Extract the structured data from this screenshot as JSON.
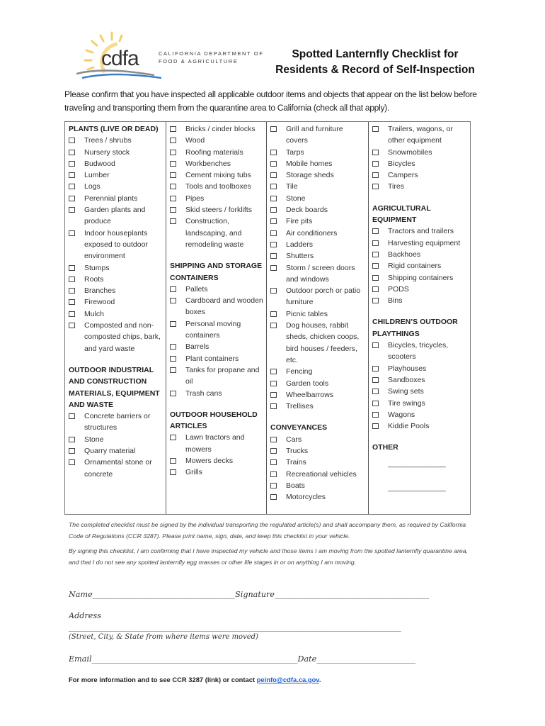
{
  "logo": {
    "wordmark": "cdfa",
    "line1": "CALIFORNIA DEPARTMENT OF",
    "line2": "FOOD & AGRICULTURE",
    "colors": {
      "sun": "#f2cf6a",
      "wave_blue": "#3d7fc7",
      "wave_gray": "#8a8a8a"
    }
  },
  "title": {
    "line1": "Spotted Lanternfly Checklist for",
    "line2": "Residents & Record of Self-Inspection"
  },
  "intro": "Please confirm that you have inspected all applicable outdoor items and objects that appear on the list below before traveling and transporting them from the quarantine area to California (check all that apply).",
  "columns": [
    [
      {
        "type": "heading",
        "text": "PLANTS (LIVE OR DEAD)"
      },
      {
        "type": "item",
        "text": "Trees / shrubs"
      },
      {
        "type": "item",
        "text": "Nursery stock"
      },
      {
        "type": "item",
        "text": "Budwood"
      },
      {
        "type": "item",
        "text": "Lumber"
      },
      {
        "type": "item",
        "text": "Logs"
      },
      {
        "type": "item",
        "text": "Perennial plants"
      },
      {
        "type": "item",
        "text": "Garden plants and produce"
      },
      {
        "type": "item",
        "text": "Indoor houseplants exposed to outdoor environment"
      },
      {
        "type": "item",
        "text": "Stumps"
      },
      {
        "type": "item",
        "text": "Roots"
      },
      {
        "type": "item",
        "text": "Branches"
      },
      {
        "type": "item",
        "text": "Firewood"
      },
      {
        "type": "item",
        "text": "Mulch"
      },
      {
        "type": "item",
        "text": "Composted and non-composted chips, bark, and yard waste"
      },
      {
        "type": "blank"
      },
      {
        "type": "heading",
        "text": "OUTDOOR INDUSTRIAL AND CONSTRUCTION MATERIALS, EQUIPMENT AND WASTE"
      },
      {
        "type": "item",
        "text": "Concrete barriers or structures"
      },
      {
        "type": "item",
        "text": "Stone"
      },
      {
        "type": "item",
        "text": "Quarry material"
      },
      {
        "type": "item",
        "text": "Ornamental stone or concrete"
      }
    ],
    [
      {
        "type": "item",
        "text": "Bricks / cinder blocks"
      },
      {
        "type": "item",
        "text": "Wood"
      },
      {
        "type": "item",
        "text": "Roofing materials"
      },
      {
        "type": "item",
        "text": "Workbenches"
      },
      {
        "type": "item",
        "text": "Cement mixing tubs"
      },
      {
        "type": "item",
        "text": "Tools and toolboxes"
      },
      {
        "type": "item",
        "text": "Pipes"
      },
      {
        "type": "item",
        "text": "Skid steers / forklifts"
      },
      {
        "type": "item",
        "text": "Construction, landscaping, and remodeling waste"
      },
      {
        "type": "blank"
      },
      {
        "type": "heading",
        "text": "SHIPPING AND STORAGE CONTAINERS"
      },
      {
        "type": "item",
        "text": "Pallets"
      },
      {
        "type": "item",
        "text": "Cardboard and wooden boxes"
      },
      {
        "type": "item",
        "text": "Personal moving containers"
      },
      {
        "type": "item",
        "text": "Barrels"
      },
      {
        "type": "item",
        "text": "Plant containers"
      },
      {
        "type": "item",
        "text": "Tanks for propane and oil"
      },
      {
        "type": "item",
        "text": "Trash cans"
      },
      {
        "type": "blank"
      },
      {
        "type": "heading",
        "text": "OUTDOOR HOUSEHOLD ARTICLES"
      },
      {
        "type": "item",
        "text": "Lawn tractors and mowers"
      },
      {
        "type": "item",
        "text": "Mowers decks"
      },
      {
        "type": "item",
        "text": "Grills"
      }
    ],
    [
      {
        "type": "item",
        "text": "Grill and furniture covers"
      },
      {
        "type": "item",
        "text": "Tarps"
      },
      {
        "type": "item",
        "text": "Mobile homes"
      },
      {
        "type": "item",
        "text": "Storage sheds"
      },
      {
        "type": "item",
        "text": "Tile"
      },
      {
        "type": "item",
        "text": "Stone"
      },
      {
        "type": "item",
        "text": "Deck boards"
      },
      {
        "type": "item",
        "text": "Fire pits"
      },
      {
        "type": "item",
        "text": "Air conditioners"
      },
      {
        "type": "item",
        "text": "Ladders"
      },
      {
        "type": "item",
        "text": "Shutters"
      },
      {
        "type": "item",
        "text": "Storm / screen doors and windows"
      },
      {
        "type": "item",
        "text": "Outdoor porch or patio furniture"
      },
      {
        "type": "item",
        "text": "Picnic tables"
      },
      {
        "type": "item",
        "text": "Dog houses, rabbit sheds, chicken coops, bird houses / feeders, etc."
      },
      {
        "type": "item",
        "text": "Fencing"
      },
      {
        "type": "item",
        "text": "Garden tools"
      },
      {
        "type": "item",
        "text": "Wheelbarrows"
      },
      {
        "type": "item",
        "text": "Trellises"
      },
      {
        "type": "blank"
      },
      {
        "type": "heading",
        "text": "CONVEYANCES"
      },
      {
        "type": "item",
        "text": "Cars"
      },
      {
        "type": "item",
        "text": "Trucks"
      },
      {
        "type": "item",
        "text": "Trains"
      },
      {
        "type": "item",
        "text": "Recreational vehicles"
      },
      {
        "type": "item",
        "text": "Boats"
      },
      {
        "type": "item",
        "text": "Motorcycles"
      }
    ],
    [
      {
        "type": "item",
        "text": "Trailers, wagons, or other equipment"
      },
      {
        "type": "item",
        "text": "Snowmobiles"
      },
      {
        "type": "item",
        "text": "Bicycles"
      },
      {
        "type": "item",
        "text": "Campers"
      },
      {
        "type": "item",
        "text": "Tires"
      },
      {
        "type": "blank"
      },
      {
        "type": "heading",
        "text": "AGRICULTURAL EQUIPMENT"
      },
      {
        "type": "item",
        "text": "Tractors and trailers"
      },
      {
        "type": "item",
        "text": "Harvesting equipment"
      },
      {
        "type": "item",
        "text": "Backhoes"
      },
      {
        "type": "item",
        "text": "Rigid containers"
      },
      {
        "type": "item",
        "text": "Shipping containers"
      },
      {
        "type": "item",
        "text": "PODS"
      },
      {
        "type": "item",
        "text": "Bins"
      },
      {
        "type": "blank"
      },
      {
        "type": "heading",
        "text": "CHILDREN’S OUTDOOR PLAYTHINGS"
      },
      {
        "type": "item",
        "text": "Bicycles, tricycles, scooters"
      },
      {
        "type": "item",
        "text": "Playhouses"
      },
      {
        "type": "item",
        "text": "Sandboxes"
      },
      {
        "type": "item",
        "text": "Swing sets"
      },
      {
        "type": "item",
        "text": "Tire swings"
      },
      {
        "type": "item",
        "text": "Wagons"
      },
      {
        "type": "item",
        "text": "Kiddie Pools"
      },
      {
        "type": "blank"
      },
      {
        "type": "heading",
        "text": "OTHER"
      },
      {
        "type": "fill",
        "text": "______________"
      },
      {
        "type": "fill",
        "text": "______________"
      }
    ]
  ],
  "notice1": "The completed checklist must be signed by the individual transporting the regulated article(s) and shall accompany them, as required by California Code of Regulations (CCR 3287). Please print name, sign, date, and keep this checklist in your vehicle.",
  "notice2": "By signing this checklist, I am confirming that I have inspected my vehicle and those items I am moving from the spotted lanternfly quarantine area, and that I do not see any spotted lanternfly egg masses or other life stages in or on anything I am moving.",
  "signature": {
    "name_label": "Name",
    "name_line": "____________________________________",
    "signature_label": "Signature",
    "signature_line": "_______________________________________",
    "address_label": "Address",
    "address_line": "____________________________________________________________________________________",
    "address_hint": "(Street, City, & State from where items were moved)",
    "email_label": "Email",
    "email_line": "____________________________________________________",
    "date_label": "Date",
    "date_line": "_________________________"
  },
  "footer": {
    "text": "For more information and to see CCR 3287 (link) or contact ",
    "email": "peinfo@cdfa.ca.gov",
    "end": ".",
    "link_color": "#1a5fd0"
  }
}
